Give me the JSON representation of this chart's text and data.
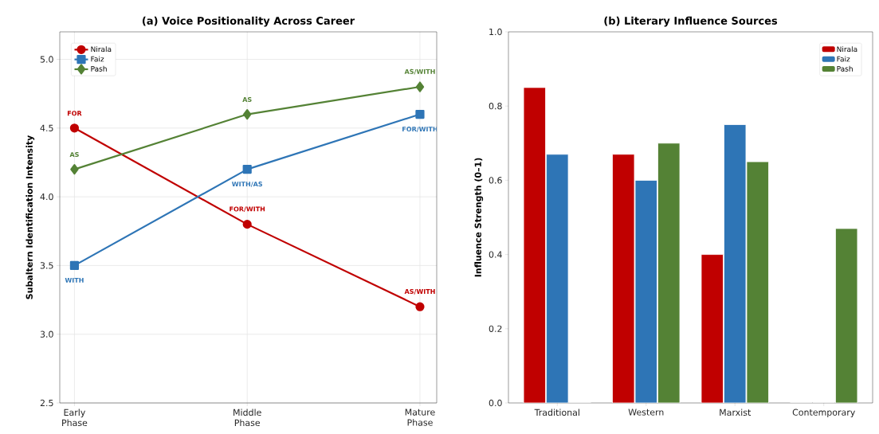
{
  "chart_data": [
    {
      "type": "line",
      "title": "(a) Voice Positionality Across Career",
      "ylabel": "Subaltern Identification Intensity",
      "categories": [
        "Early Phase",
        "Middle Phase",
        "Mature Phase"
      ],
      "series": [
        {
          "name": "Nirala",
          "color": "#c00000",
          "marker": "circle",
          "values": [
            4.5,
            3.8,
            3.2
          ],
          "value_labels": [
            "FOR",
            "FOR/WITH",
            "AS/WITH"
          ]
        },
        {
          "name": "Faiz",
          "color": "#2e75b6",
          "marker": "square",
          "values": [
            3.5,
            4.2,
            4.6
          ],
          "value_labels": [
            "WITH",
            "WITH/AS",
            "FOR/WITH"
          ]
        },
        {
          "name": "Pash",
          "color": "#548235",
          "marker": "diamond",
          "values": [
            4.2,
            4.6,
            4.8
          ],
          "value_labels": [
            "AS",
            "AS",
            "AS/WITH"
          ]
        }
      ],
      "ylim": [
        2.5,
        5.2
      ],
      "yticks": [
        {
          "value": 2.5,
          "label": "2.5"
        },
        {
          "value": 3.0,
          "label": "3.0"
        },
        {
          "value": 3.5,
          "label": "3.5"
        },
        {
          "value": 4.0,
          "label": "4.0"
        },
        {
          "value": 4.5,
          "label": "4.5"
        },
        {
          "value": 5.0,
          "label": "5.0"
        }
      ],
      "grid": true,
      "legend": "top left",
      "line_style": "solid"
    },
    {
      "type": "bar",
      "title": "(b) Literary Influence Sources",
      "ylabel": "Influence Strength (0–1)",
      "categories": [
        "Traditional",
        "Western",
        "Marxist",
        "Contemporary"
      ],
      "series": [
        {
          "name": "Nirala",
          "color": "#c00000",
          "values": [
            0.85,
            0.67,
            0.4,
            0
          ]
        },
        {
          "name": "Faiz",
          "color": "#2e75b6",
          "values": [
            0.67,
            0.6,
            0.75,
            0
          ]
        },
        {
          "name": "Pash",
          "color": "#548235",
          "values": [
            0,
            0.7,
            0.65,
            0.47
          ]
        }
      ],
      "ylim": [
        0,
        1.0
      ],
      "yticks": [
        {
          "value": 0,
          "label": "0.0"
        },
        {
          "value": 0.2,
          "label": "0.2"
        },
        {
          "value": 0.4,
          "label": "0.4"
        },
        {
          "value": 0.6,
          "label": "0.6"
        },
        {
          "value": 0.8,
          "label": "0.8"
        },
        {
          "value": 1.0,
          "label": "1.0"
        }
      ],
      "grid": false,
      "legend": "top right"
    }
  ]
}
